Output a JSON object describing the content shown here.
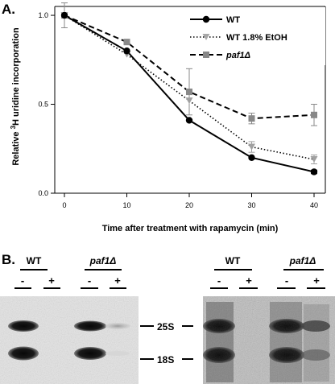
{
  "panel_a_label": "A.",
  "panel_b_label": "B.",
  "chart_data": {
    "type": "line",
    "title": "",
    "xlabel": "Time after treatment with rapamycin (min)",
    "ylabel_prefix": "Relative ",
    "ylabel_sup": "3",
    "ylabel_suffix": "H uridine incorporation",
    "x": [
      0,
      10,
      20,
      30,
      40
    ],
    "xlim": [
      0,
      40
    ],
    "ylim": [
      0.0,
      1.05
    ],
    "xticks": [
      "0",
      "10",
      "20",
      "30",
      "40"
    ],
    "yticks": [
      "0.0",
      "0.5",
      "1.0"
    ],
    "grid": false,
    "legend_position": "top-right",
    "series": [
      {
        "name": "WT",
        "values": [
          1.0,
          0.8,
          0.41,
          0.2,
          0.12
        ],
        "errors": [
          0,
          0,
          0,
          0,
          0.01
        ],
        "color": "#000000",
        "dash": "",
        "marker": "circle"
      },
      {
        "name": "WT 1.8% EtOH",
        "values": [
          1.0,
          0.78,
          0.52,
          0.26,
          0.19
        ],
        "errors": [
          0,
          0,
          0,
          0.03,
          0.025
        ],
        "color": "#a0a0a0",
        "dash": "1.5,2.5",
        "marker": "triangle"
      },
      {
        "name": "paf1Δ",
        "values": [
          1.0,
          0.85,
          0.57,
          0.42,
          0.44
        ],
        "errors": [
          0.07,
          0,
          0.13,
          0.03,
          0.06
        ],
        "color": "#888888",
        "dash": "7,4",
        "marker": "square"
      }
    ]
  },
  "gel": {
    "left_gel": {
      "strain1": "WT",
      "strain2": "paf1Δ",
      "signs": [
        "-",
        "+",
        "-",
        "+"
      ]
    },
    "right_gel": {
      "strain1": "WT",
      "strain2": "paf1Δ",
      "signs": [
        "-",
        "+",
        "-",
        "+"
      ]
    },
    "band_labels": [
      "25S",
      "18S"
    ]
  }
}
